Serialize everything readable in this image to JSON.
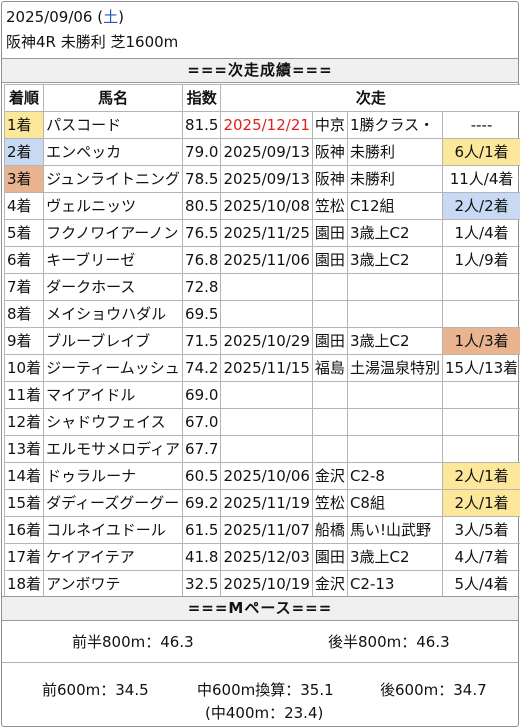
{
  "header": {
    "date": "2025/09/06",
    "weekday_open": "(",
    "weekday": "土",
    "weekday_close": ")",
    "race_line": "阪神4R 未勝利 芝1600m"
  },
  "section_titles": {
    "results": "===次走成績===",
    "pace": "===Mペース==="
  },
  "table": {
    "columns": [
      "着順",
      "馬名",
      "指数",
      "次走"
    ],
    "rows": [
      {
        "rank": "1着",
        "name": "パスコード",
        "index": "81.5",
        "date": "2025/12/21",
        "venue": "中京",
        "race": "1勝クラス・",
        "result": "----",
        "rank_style": "gold",
        "result_style": "",
        "date_style": "red"
      },
      {
        "rank": "2着",
        "name": "エンペッカ",
        "index": "79.0",
        "date": "2025/09/13",
        "venue": "阪神",
        "race": "未勝利",
        "result": "6人/1着",
        "rank_style": "blue",
        "result_style": "gold",
        "date_style": ""
      },
      {
        "rank": "3着",
        "name": "ジュンライトニング",
        "index": "78.5",
        "date": "2025/09/13",
        "venue": "阪神",
        "race": "未勝利",
        "result": "11人/4着",
        "rank_style": "bronze",
        "result_style": "",
        "date_style": ""
      },
      {
        "rank": "4着",
        "name": "ヴェルニッツ",
        "index": "80.5",
        "date": "2025/10/08",
        "venue": "笠松",
        "race": "C12組",
        "result": "2人/2着",
        "rank_style": "",
        "result_style": "blue",
        "date_style": ""
      },
      {
        "rank": "5着",
        "name": "フクノワイアーノン",
        "index": "76.5",
        "date": "2025/11/25",
        "venue": "園田",
        "race": "3歳上C2",
        "result": "1人/4着",
        "rank_style": "",
        "result_style": "",
        "date_style": ""
      },
      {
        "rank": "6着",
        "name": "キーブリーゼ",
        "index": "76.8",
        "date": "2025/11/06",
        "venue": "園田",
        "race": "3歳上C2",
        "result": "1人/9着",
        "rank_style": "",
        "result_style": "",
        "date_style": ""
      },
      {
        "rank": "7着",
        "name": "ダークホース",
        "index": "72.8",
        "date": "",
        "venue": "",
        "race": "",
        "result": "",
        "rank_style": "",
        "result_style": "",
        "date_style": ""
      },
      {
        "rank": "8着",
        "name": "メイショウハダル",
        "index": "69.5",
        "date": "",
        "venue": "",
        "race": "",
        "result": "",
        "rank_style": "",
        "result_style": "",
        "date_style": ""
      },
      {
        "rank": "9着",
        "name": "ブルーブレイブ",
        "index": "71.5",
        "date": "2025/10/29",
        "venue": "園田",
        "race": "3歳上C2",
        "result": "1人/3着",
        "rank_style": "",
        "result_style": "bronze",
        "date_style": ""
      },
      {
        "rank": "10着",
        "name": "ジーティームッシュ",
        "index": "74.2",
        "date": "2025/11/15",
        "venue": "福島",
        "race": "土湯温泉特別",
        "result": "15人/13着",
        "rank_style": "",
        "result_style": "",
        "date_style": ""
      },
      {
        "rank": "11着",
        "name": "マイアイドル",
        "index": "69.0",
        "date": "",
        "venue": "",
        "race": "",
        "result": "",
        "rank_style": "",
        "result_style": "",
        "date_style": ""
      },
      {
        "rank": "12着",
        "name": "シャドウフェイス",
        "index": "67.0",
        "date": "",
        "venue": "",
        "race": "",
        "result": "",
        "rank_style": "",
        "result_style": "",
        "date_style": ""
      },
      {
        "rank": "13着",
        "name": "エルモサメロディア",
        "index": "67.7",
        "date": "",
        "venue": "",
        "race": "",
        "result": "",
        "rank_style": "",
        "result_style": "",
        "date_style": ""
      },
      {
        "rank": "14着",
        "name": "ドゥラルーナ",
        "index": "60.5",
        "date": "2025/10/06",
        "venue": "金沢",
        "race": "C2-8",
        "result": "2人/1着",
        "rank_style": "",
        "result_style": "gold",
        "date_style": ""
      },
      {
        "rank": "15着",
        "name": "ダディーズグーグー",
        "index": "69.2",
        "date": "2025/11/19",
        "venue": "笠松",
        "race": "C8組",
        "result": "2人/1着",
        "rank_style": "",
        "result_style": "gold",
        "date_style": ""
      },
      {
        "rank": "16着",
        "name": "コルネイユドール",
        "index": "61.5",
        "date": "2025/11/07",
        "venue": "船橋",
        "race": "馬い!山武野",
        "result": "3人/5着",
        "rank_style": "",
        "result_style": "",
        "date_style": ""
      },
      {
        "rank": "17着",
        "name": "ケイアイテア",
        "index": "41.8",
        "date": "2025/12/03",
        "venue": "園田",
        "race": "3歳上C2",
        "result": "4人/7着",
        "rank_style": "",
        "result_style": "",
        "date_style": ""
      },
      {
        "rank": "18着",
        "name": "アンボワテ",
        "index": "32.5",
        "date": "2025/10/19",
        "venue": "金沢",
        "race": "C2-13",
        "result": "5人/4着",
        "rank_style": "",
        "result_style": "",
        "date_style": ""
      }
    ]
  },
  "pace": {
    "first_half": "前半800m：46.3",
    "second_half": "後半800m：46.3",
    "first_600": "前600m：34.5",
    "middle_600": "中600m換算：35.1",
    "last_600": "後600m：34.7",
    "middle_400": "(中400m：23.4)"
  },
  "colors": {
    "gold": "#fce79a",
    "blue": "#c7d9f3",
    "bronze": "#e9b48f",
    "red_date": "#e0201c",
    "saturday": "#2255cc"
  }
}
